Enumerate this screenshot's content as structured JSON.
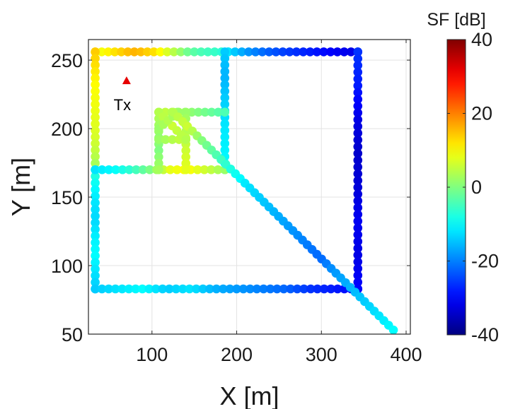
{
  "chart_data": {
    "type": "scatter",
    "xlabel": "X [m]",
    "ylabel": "Y [m]",
    "xlim": [
      25,
      405
    ],
    "ylim": [
      50,
      265
    ],
    "xticks": [
      "100",
      "200",
      "300",
      "400"
    ],
    "yticks": [
      "50",
      "100",
      "150",
      "200",
      "250"
    ],
    "grid": true,
    "colorbar": {
      "title": "SF [dB]",
      "range": [
        -40,
        40
      ],
      "ticks": [
        "-40",
        "-20",
        "0",
        "20",
        "40"
      ],
      "colormap": "jet"
    },
    "annotation": {
      "label": "Tx",
      "x": 70,
      "y": 235,
      "color": "#e60000"
    },
    "segments": [
      {
        "name": "top-left",
        "from": [
          33,
          256
        ],
        "to": [
          110,
          256
        ],
        "sf": [
          8,
          10,
          12,
          14,
          16,
          15,
          13,
          11
        ]
      },
      {
        "name": "top-mid",
        "from": [
          110,
          256
        ],
        "to": [
          190,
          256
        ],
        "sf": [
          10,
          6,
          2,
          -2,
          -4,
          -5,
          -6,
          -8
        ]
      },
      {
        "name": "top-right",
        "from": [
          190,
          256
        ],
        "to": [
          343,
          256
        ],
        "sf": [
          -12,
          -18,
          -22,
          -25,
          -27,
          -29,
          -31,
          -32
        ]
      },
      {
        "name": "left-upper",
        "from": [
          33,
          256
        ],
        "to": [
          33,
          170
        ],
        "sf": [
          14,
          12,
          10,
          9,
          8,
          7,
          5,
          2
        ]
      },
      {
        "name": "left-lower",
        "from": [
          33,
          170
        ],
        "to": [
          33,
          83
        ],
        "sf": [
          -6,
          -10,
          -12,
          -13,
          -11,
          -10,
          -12,
          -14
        ]
      },
      {
        "name": "bottom",
        "from": [
          33,
          83
        ],
        "to": [
          343,
          83
        ],
        "sf": [
          -14,
          -12,
          -10,
          -14,
          -12,
          -16,
          -18,
          -20,
          -22,
          -26,
          -28,
          -30
        ]
      },
      {
        "name": "right",
        "from": [
          343,
          256
        ],
        "to": [
          343,
          83
        ],
        "sf": [
          -26,
          -28,
          -32,
          -34,
          -33,
          -31,
          -32,
          -30
        ]
      },
      {
        "name": "vertical-x186",
        "from": [
          186,
          256
        ],
        "to": [
          186,
          170
        ],
        "sf": [
          -14,
          -16,
          -14,
          -12,
          -11,
          -10
        ]
      },
      {
        "name": "horizontal-y170",
        "from": [
          33,
          170
        ],
        "to": [
          186,
          170
        ],
        "sf": [
          -12,
          -10,
          -6,
          0,
          8,
          10,
          6,
          2
        ]
      },
      {
        "name": "box-top",
        "from": [
          108,
          212
        ],
        "to": [
          186,
          212
        ],
        "sf": [
          6,
          4,
          2,
          0,
          -2,
          -4
        ]
      },
      {
        "name": "box-left",
        "from": [
          108,
          212
        ],
        "to": [
          108,
          170
        ],
        "sf": [
          4,
          2,
          0,
          3
        ]
      },
      {
        "name": "inner-vertical",
        "from": [
          140,
          212
        ],
        "to": [
          140,
          170
        ],
        "sf": [
          2,
          4,
          6,
          8
        ]
      },
      {
        "name": "inner-horizontal",
        "from": [
          108,
          192
        ],
        "to": [
          140,
          192
        ],
        "sf": [
          2,
          4,
          6
        ]
      },
      {
        "name": "inner-diag-1",
        "from": [
          108,
          212
        ],
        "to": [
          140,
          192
        ],
        "sf": [
          4,
          6,
          4
        ]
      },
      {
        "name": "inner-diag-2",
        "from": [
          108,
          200
        ],
        "to": [
          130,
          212
        ],
        "sf": [
          2,
          4,
          2
        ]
      },
      {
        "name": "diagonal",
        "from": [
          125,
          212
        ],
        "to": [
          385,
          53
        ],
        "sf": [
          4,
          6,
          0,
          -4,
          -8,
          -12,
          -14,
          -16,
          -18,
          -20,
          -22,
          -18,
          -16,
          -14,
          -12,
          -10
        ]
      }
    ]
  }
}
